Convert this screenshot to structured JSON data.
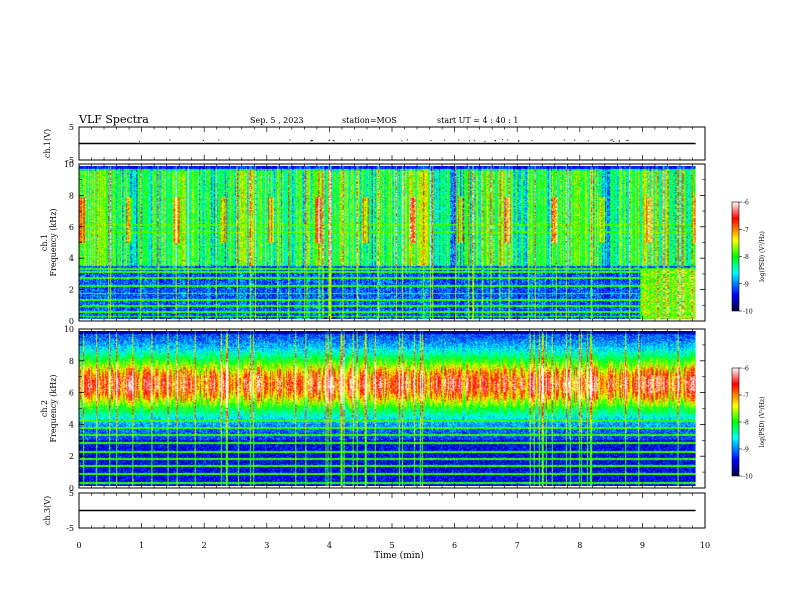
{
  "header": {
    "title": "VLF Spectra",
    "date": "Sep. 5 , 2023",
    "station": "station=MOS",
    "start": "start UT =  4 : 40 : 1"
  },
  "chart_data": [
    {
      "type": "line",
      "panel": "ch1-waveform",
      "ylabel": "ch.1(V)",
      "ylim": [
        -5,
        5
      ],
      "yticks": [
        "5",
        "-5"
      ],
      "series": [
        {
          "x": [
            0,
            9.85
          ],
          "values": [
            0,
            0
          ]
        }
      ]
    },
    {
      "type": "heatmap",
      "panel": "ch1-spectrogram",
      "ylabel_line1": "ch.1",
      "ylabel_line2": "Frequency (kHz)",
      "ylim": [
        0,
        10
      ],
      "yticks": [
        "0",
        "2",
        "4",
        "6",
        "8",
        "10"
      ],
      "xlim": [
        0,
        10
      ],
      "data_extent_min": 9.85,
      "colorbar": {
        "label": "log(PSD) (V²/Hz)",
        "range": [
          -10,
          -6
        ],
        "ticks": [
          "-6",
          "-7",
          "-8",
          "-9",
          "-10"
        ]
      }
    },
    {
      "type": "heatmap",
      "panel": "ch2-spectrogram",
      "ylabel_line1": "ch.2",
      "ylabel_line2": "Frequency (kHz)",
      "ylim": [
        0,
        10
      ],
      "yticks": [
        "0",
        "2",
        "4",
        "6",
        "8",
        "10"
      ],
      "xlim": [
        0,
        10
      ],
      "data_extent_min": 9.85,
      "colorbar": {
        "label": "log(PSD) (V²/Hz)",
        "range": [
          -10,
          -6
        ],
        "ticks": [
          "-6",
          "-7",
          "-8",
          "-9",
          "-10"
        ]
      }
    },
    {
      "type": "line",
      "panel": "ch3-waveform",
      "ylabel": "ch.3(V)",
      "ylim": [
        -5,
        5
      ],
      "yticks": [
        "5",
        "-5"
      ],
      "series": [
        {
          "x": [
            0,
            9.85
          ],
          "values": [
            0,
            0
          ]
        }
      ]
    }
  ],
  "xaxis": {
    "label": "Time (min)",
    "ticks": [
      "0",
      "1",
      "2",
      "3",
      "4",
      "5",
      "6",
      "7",
      "8",
      "9",
      "10"
    ]
  },
  "colors": {
    "cmap": [
      "#000040",
      "#0000ff",
      "#00ffff",
      "#00ff00",
      "#ffff00",
      "#ff0000",
      "#ffffff"
    ]
  }
}
